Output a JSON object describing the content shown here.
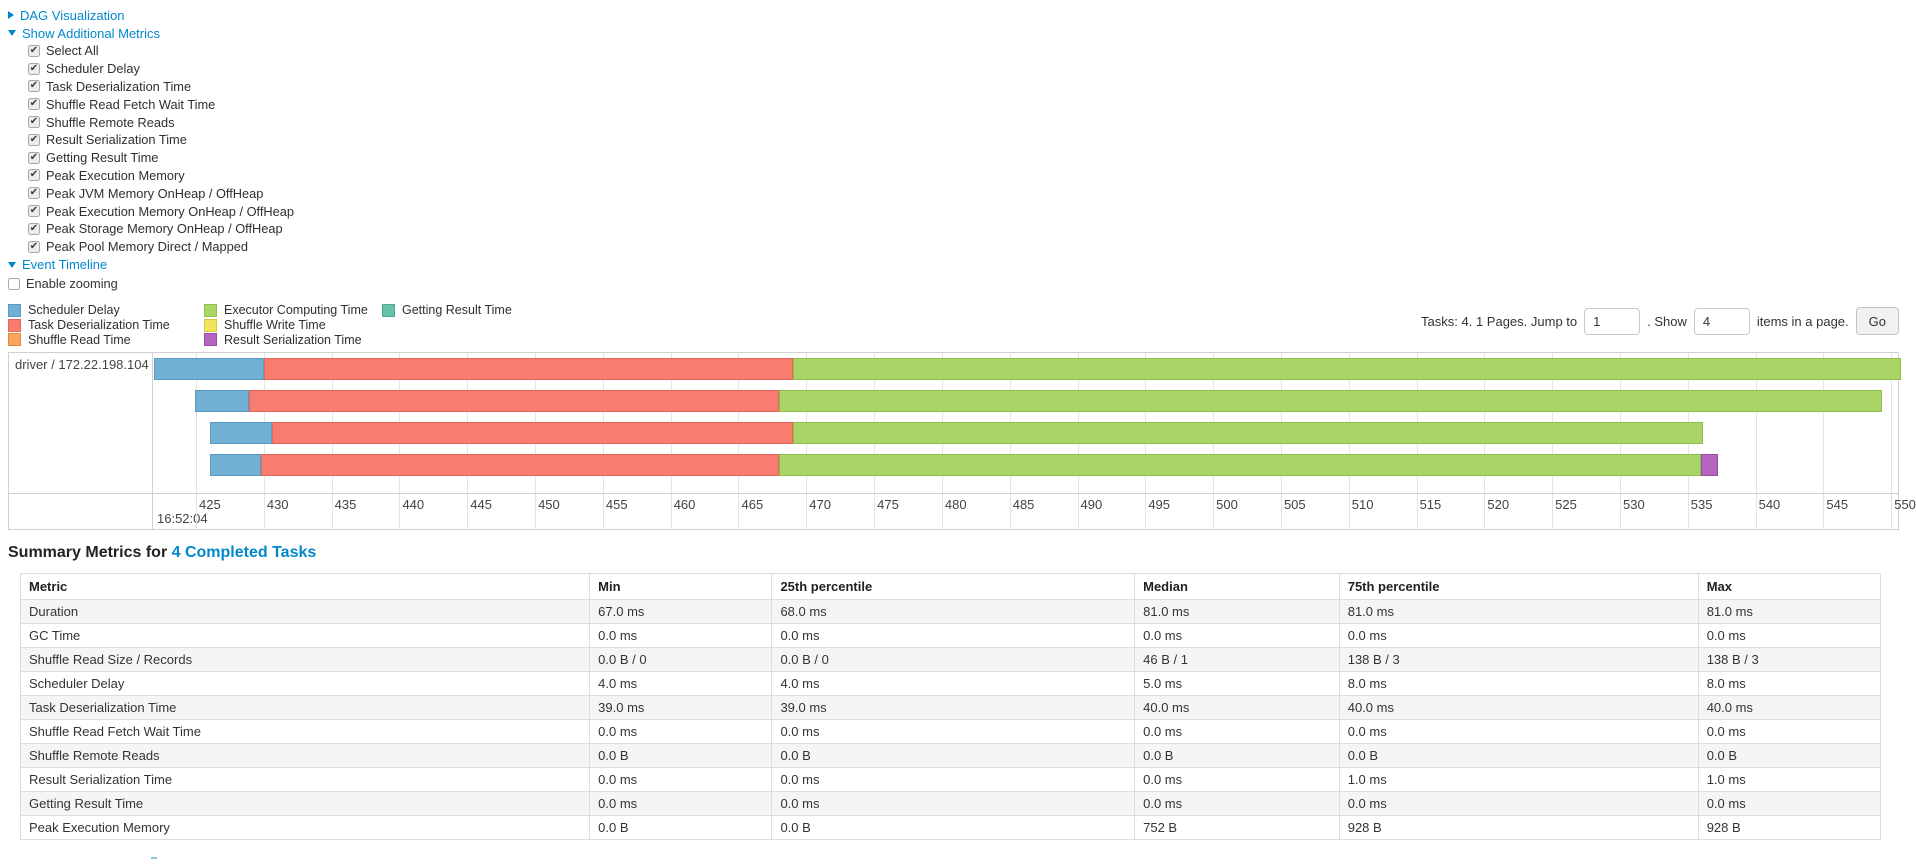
{
  "links": {
    "dag": "DAG Visualization",
    "additional_metrics": "Show Additional Metrics",
    "event_timeline": "Event Timeline"
  },
  "additional_metrics": {
    "items": [
      {
        "label": "Select All",
        "checked": true
      },
      {
        "label": "Scheduler Delay",
        "checked": true
      },
      {
        "label": "Task Deserialization Time",
        "checked": true
      },
      {
        "label": "Shuffle Read Fetch Wait Time",
        "checked": true
      },
      {
        "label": "Shuffle Remote Reads",
        "checked": true
      },
      {
        "label": "Result Serialization Time",
        "checked": true
      },
      {
        "label": "Getting Result Time",
        "checked": true
      },
      {
        "label": "Peak Execution Memory",
        "checked": true
      },
      {
        "label": "Peak JVM Memory OnHeap / OffHeap",
        "checked": true
      },
      {
        "label": "Peak Execution Memory OnHeap / OffHeap",
        "checked": true
      },
      {
        "label": "Peak Storage Memory OnHeap / OffHeap",
        "checked": true
      },
      {
        "label": "Peak Pool Memory Direct / Mapped",
        "checked": true
      }
    ]
  },
  "enable_zooming": {
    "label": "Enable zooming",
    "checked": false
  },
  "pagination": {
    "tasks_text": "Tasks: 4. 1 Pages. Jump to",
    "jump_value": "1",
    "show_text": ". Show",
    "show_value": "4",
    "items_text": "items in a page.",
    "go_label": "Go"
  },
  "chart_data": {
    "type": "timeline",
    "row_label": "driver / 172.22.198.104",
    "axis": {
      "min": 421.9,
      "max": 550.5,
      "tick_start": 425,
      "tick_step": 5,
      "tick_end": 550,
      "time_label": "16:52:04"
    },
    "legend": [
      {
        "key": "scheduler_delay",
        "label": "Scheduler Delay",
        "fill": "#72b0d3",
        "border": "#5a9bc4"
      },
      {
        "key": "task_deserialization",
        "label": "Task Deserialization Time",
        "fill": "#f87d70",
        "border": "#e3685c"
      },
      {
        "key": "shuffle_read",
        "label": "Shuffle Read Time",
        "fill": "#f9a65c",
        "border": "#e08c42"
      },
      {
        "key": "executor_computing",
        "label": "Executor Computing Time",
        "fill": "#a9d566",
        "border": "#8fbf4d"
      },
      {
        "key": "shuffle_write",
        "label": "Shuffle Write Time",
        "fill": "#f1e35e",
        "border": "#d6c83f"
      },
      {
        "key": "result_serialization",
        "label": "Result Serialization Time",
        "fill": "#b564c0",
        "border": "#9c4aa8"
      },
      {
        "key": "getting_result",
        "label": "Getting Result Time",
        "fill": "#66c2a9",
        "border": "#4daa90"
      }
    ],
    "tasks": [
      {
        "segments": [
          {
            "key": "scheduler_delay",
            "from": 421.9,
            "to": 430.0
          },
          {
            "key": "task_deserialization",
            "from": 430.0,
            "to": 469.0
          },
          {
            "key": "executor_computing",
            "from": 469.0,
            "to": 550.7
          }
        ]
      },
      {
        "segments": [
          {
            "key": "scheduler_delay",
            "from": 424.9,
            "to": 428.9
          },
          {
            "key": "task_deserialization",
            "from": 428.9,
            "to": 468.0
          },
          {
            "key": "executor_computing",
            "from": 468.0,
            "to": 549.3
          }
        ]
      },
      {
        "segments": [
          {
            "key": "scheduler_delay",
            "from": 426.0,
            "to": 430.6
          },
          {
            "key": "task_deserialization",
            "from": 430.6,
            "to": 469.0
          },
          {
            "key": "executor_computing",
            "from": 469.0,
            "to": 536.1
          }
        ]
      },
      {
        "segments": [
          {
            "key": "scheduler_delay",
            "from": 426.0,
            "to": 429.8
          },
          {
            "key": "task_deserialization",
            "from": 429.8,
            "to": 468.0
          },
          {
            "key": "executor_computing",
            "from": 468.0,
            "to": 536.0
          },
          {
            "key": "result_serialization",
            "from": 536.0,
            "to": 537.2
          }
        ]
      }
    ]
  },
  "summary": {
    "title": "Summary Metrics for",
    "title_link": "4 Completed Tasks"
  },
  "summary_table": {
    "columns": [
      "Metric",
      "Min",
      "25th percentile",
      "Median",
      "75th percentile",
      "Max"
    ],
    "rows": [
      {
        "metric": "Duration",
        "values": [
          "67.0 ms",
          "68.0 ms",
          "81.0 ms",
          "81.0 ms",
          "81.0 ms"
        ]
      },
      {
        "metric": "GC Time",
        "values": [
          "0.0 ms",
          "0.0 ms",
          "0.0 ms",
          "0.0 ms",
          "0.0 ms"
        ]
      },
      {
        "metric": "Shuffle Read Size / Records",
        "values": [
          "0.0 B / 0",
          "0.0 B / 0",
          "46 B / 1",
          "138 B / 3",
          "138 B / 3"
        ]
      },
      {
        "metric": "Scheduler Delay",
        "values": [
          "4.0 ms",
          "4.0 ms",
          "5.0 ms",
          "8.0 ms",
          "8.0 ms"
        ]
      },
      {
        "metric": "Task Deserialization Time",
        "values": [
          "39.0 ms",
          "39.0 ms",
          "40.0 ms",
          "40.0 ms",
          "40.0 ms"
        ]
      },
      {
        "metric": "Shuffle Read Fetch Wait Time",
        "values": [
          "0.0 ms",
          "0.0 ms",
          "0.0 ms",
          "0.0 ms",
          "0.0 ms"
        ]
      },
      {
        "metric": "Shuffle Remote Reads",
        "values": [
          "0.0 B",
          "0.0 B",
          "0.0 B",
          "0.0 B",
          "0.0 B"
        ]
      },
      {
        "metric": "Result Serialization Time",
        "values": [
          "0.0 ms",
          "0.0 ms",
          "0.0 ms",
          "1.0 ms",
          "1.0 ms"
        ]
      },
      {
        "metric": "Getting Result Time",
        "values": [
          "0.0 ms",
          "0.0 ms",
          "0.0 ms",
          "0.0 ms",
          "0.0 ms"
        ]
      },
      {
        "metric": "Peak Execution Memory",
        "values": [
          "0.0 B",
          "0.0 B",
          "752 B",
          "928 B",
          "928 B"
        ]
      }
    ]
  }
}
